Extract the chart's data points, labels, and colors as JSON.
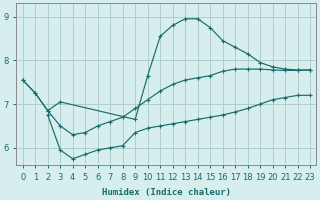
{
  "xlabel": "Humidex (Indice chaleur)",
  "bg_color": "#d6eeee",
  "grid_color": "#b0cccc",
  "line_color": "#1a6b6b",
  "xlim": [
    -0.5,
    23.5
  ],
  "ylim": [
    5.6,
    9.3
  ],
  "yticks": [
    6,
    7,
    8,
    9
  ],
  "xticks": [
    0,
    1,
    2,
    3,
    4,
    5,
    6,
    7,
    8,
    9,
    10,
    11,
    12,
    13,
    14,
    15,
    16,
    17,
    18,
    19,
    20,
    21,
    22,
    23
  ],
  "line1_x": [
    0,
    1,
    2,
    3,
    4,
    5,
    6,
    7,
    8,
    9,
    10,
    11,
    12,
    13,
    14,
    15,
    16,
    17,
    18,
    19,
    20,
    21,
    22,
    23
  ],
  "line1_y": [
    7.55,
    7.25,
    6.85,
    6.5,
    6.3,
    6.35,
    6.5,
    6.6,
    6.7,
    6.9,
    7.1,
    7.3,
    7.45,
    7.55,
    7.6,
    7.65,
    7.75,
    7.8,
    7.8,
    7.8,
    7.78,
    7.77,
    7.77,
    7.78
  ],
  "line2_x": [
    0,
    1,
    2,
    3,
    9,
    10,
    11,
    12,
    13,
    14,
    15,
    16,
    17,
    18,
    19,
    20,
    21,
    22,
    23
  ],
  "line2_y": [
    7.55,
    7.25,
    6.85,
    7.05,
    6.65,
    7.65,
    8.55,
    8.8,
    8.95,
    8.95,
    8.75,
    8.45,
    8.3,
    8.15,
    7.95,
    7.85,
    7.8,
    7.78,
    7.78
  ],
  "line3_x": [
    2,
    3,
    4,
    5,
    6,
    7,
    8,
    9,
    10,
    11,
    12,
    13,
    14,
    15,
    16,
    17,
    18,
    19,
    20,
    21,
    22,
    23
  ],
  "line3_y": [
    6.75,
    5.95,
    5.75,
    5.85,
    5.95,
    6.0,
    6.05,
    6.35,
    6.45,
    6.5,
    6.55,
    6.6,
    6.65,
    6.7,
    6.75,
    6.82,
    6.9,
    7.0,
    7.1,
    7.15,
    7.2,
    7.2
  ]
}
